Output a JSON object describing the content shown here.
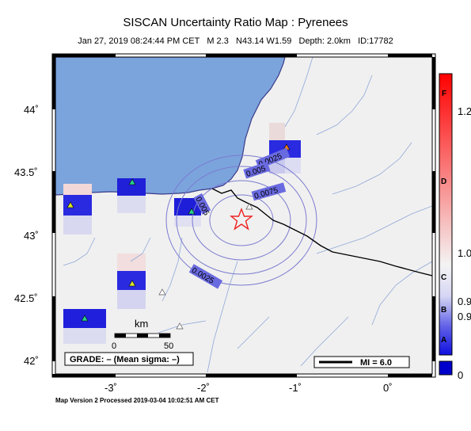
{
  "map": {
    "title": "SISCAN Uncertainty Ratio Map : Pyrenees",
    "subtitle": "Jan 27, 2019 08:24:44 PM CET   M 2.3   N43.14 W1.59   Depth: 2.0km   ID:17782",
    "footer": "Map Version 2 Processed 2019-03-04 10:02:51 AM CET",
    "lat_ticks": [
      "44˚",
      "43.5˚",
      "43˚",
      "42.5˚",
      "42˚"
    ],
    "lon_ticks": [
      "-3˚",
      "-2˚",
      "-1˚",
      "0˚"
    ],
    "scale_unit": "km",
    "scale_start": "0",
    "scale_end": "50",
    "grade_label": "GRADE: – (Mean sigma: –)",
    "mi_label": "MI = 6.0",
    "contour_labels": [
      "0.0025",
      "0.005",
      "0.0075",
      "0.005",
      "0.0025"
    ]
  },
  "colorbar": {
    "values": [
      "1.2",
      "1.0",
      "0.9",
      "0.9",
      "0"
    ],
    "grades": [
      "F",
      "D",
      "C",
      "B",
      "A"
    ],
    "colors": {
      "high": "#ff0000",
      "mid": "#f2f2f2",
      "low": "#1a1aee",
      "bottom_box": "#0000cc"
    }
  },
  "colors": {
    "water": "#7ba4dc",
    "land": "#f0f0f0",
    "border": "#000000",
    "river": "#8fa8d8",
    "contour": "#7b7bd0",
    "epicenter": "#ee2222"
  },
  "stations": [
    "green",
    "green",
    "green",
    "green",
    "green",
    "orange",
    "gray",
    "gray",
    "gray"
  ]
}
